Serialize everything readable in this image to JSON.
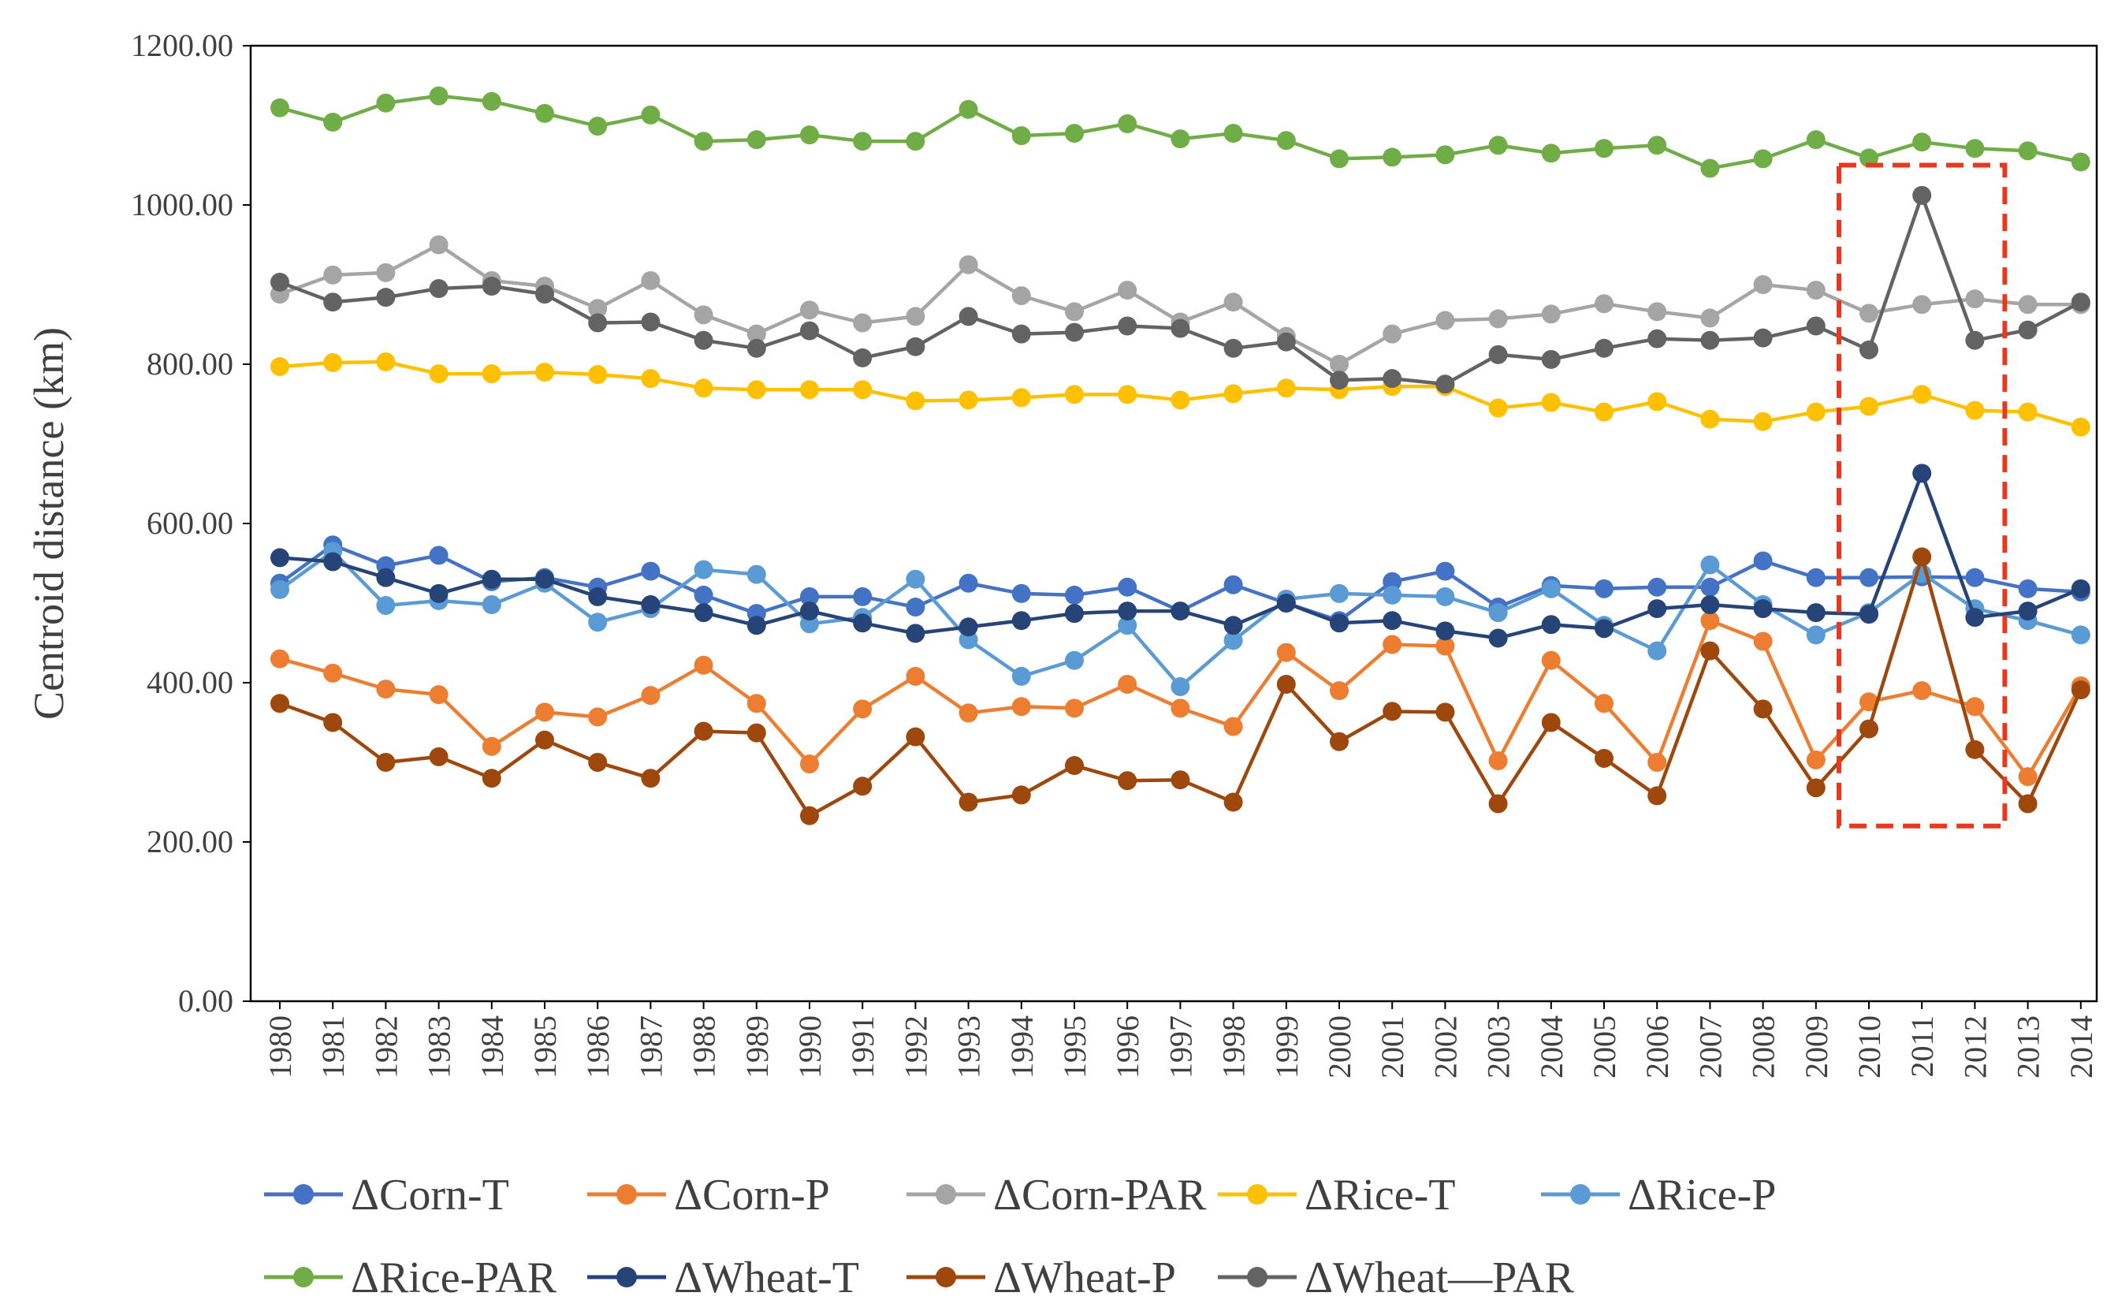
{
  "chart_data": {
    "type": "line",
    "title": "",
    "xlabel": "",
    "ylabel": "Centroid distance (km)",
    "ylim": [
      0,
      1200
    ],
    "y_ticks": [
      "0.00",
      "200.00",
      "400.00",
      "600.00",
      "800.00",
      "1000.00",
      "1200.00"
    ],
    "x": [
      "1980",
      "1981",
      "1982",
      "1983",
      "1984",
      "1985",
      "1986",
      "1987",
      "1988",
      "1989",
      "1990",
      "1991",
      "1992",
      "1993",
      "1994",
      "1995",
      "1996",
      "1997",
      "1998",
      "1999",
      "2000",
      "2001",
      "2002",
      "2003",
      "2004",
      "2005",
      "2006",
      "2007",
      "2008",
      "2009",
      "2010",
      "2011",
      "2012",
      "2013",
      "2014"
    ],
    "legend_position": "bottom",
    "highlight": {
      "x_from": "2010",
      "x_to": "2012",
      "y_from": 220,
      "y_to": 1050,
      "color": "#e8391e",
      "style": "dashed"
    },
    "series": [
      {
        "name": "ΔCorn-T",
        "color": "#4472c4",
        "values": [
          525,
          573,
          547,
          560,
          527,
          532,
          520,
          540,
          510,
          487,
          508,
          508,
          495,
          525,
          512,
          510,
          520,
          490,
          523,
          500,
          478,
          527,
          540,
          495,
          522,
          518,
          520,
          520,
          553,
          532,
          532,
          533,
          532,
          518,
          514
        ]
      },
      {
        "name": "ΔCorn-P",
        "color": "#ed7d31",
        "values": [
          430,
          412,
          392,
          385,
          320,
          363,
          357,
          384,
          422,
          374,
          298,
          367,
          408,
          362,
          370,
          368,
          398,
          368,
          345,
          438,
          390,
          448,
          446,
          302,
          428,
          374,
          300,
          478,
          452,
          303,
          376,
          390,
          370,
          282,
          396
        ]
      },
      {
        "name": "ΔCorn-PAR",
        "color": "#a5a5a5",
        "values": [
          888,
          912,
          915,
          950,
          905,
          898,
          870,
          905,
          862,
          838,
          868,
          852,
          860,
          925,
          886,
          866,
          893,
          853,
          878,
          835,
          800,
          838,
          855,
          857,
          863,
          876,
          866,
          858,
          900,
          893,
          864,
          875,
          882,
          875,
          875
        ]
      },
      {
        "name": "ΔRice-T",
        "color": "#ffc000",
        "values": [
          797,
          802,
          803,
          788,
          788,
          790,
          787,
          782,
          770,
          768,
          768,
          768,
          754,
          755,
          758,
          762,
          762,
          755,
          763,
          770,
          768,
          772,
          772,
          745,
          752,
          740,
          753,
          731,
          728,
          740,
          747,
          762,
          742,
          740,
          721
        ]
      },
      {
        "name": "ΔRice-P",
        "color": "#5b9bd5",
        "values": [
          517,
          565,
          497,
          503,
          498,
          525,
          476,
          493,
          542,
          536,
          474,
          482,
          530,
          454,
          408,
          428,
          472,
          395,
          453,
          505,
          512,
          510,
          508,
          488,
          518,
          472,
          440,
          548,
          498,
          460,
          488,
          537,
          493,
          478,
          460
        ]
      },
      {
        "name": "ΔRice-PAR",
        "color": "#70ad47",
        "values": [
          1122,
          1104,
          1128,
          1137,
          1130,
          1115,
          1099,
          1113,
          1080,
          1082,
          1088,
          1080,
          1080,
          1120,
          1087,
          1090,
          1102,
          1083,
          1090,
          1081,
          1058,
          1060,
          1063,
          1075,
          1065,
          1071,
          1075,
          1046,
          1058,
          1082,
          1059,
          1079,
          1071,
          1068,
          1054
        ]
      },
      {
        "name": "ΔWheat-T",
        "color": "#264478",
        "values": [
          557,
          552,
          532,
          512,
          530,
          530,
          508,
          498,
          488,
          472,
          490,
          475,
          462,
          470,
          478,
          487,
          490,
          490,
          472,
          500,
          475,
          478,
          465,
          456,
          473,
          468,
          493,
          498,
          493,
          488,
          486,
          663,
          482,
          490,
          518
        ]
      },
      {
        "name": "ΔWheat-P",
        "color": "#9e480e",
        "values": [
          374,
          350,
          300,
          307,
          280,
          328,
          300,
          280,
          339,
          337,
          233,
          270,
          332,
          250,
          259,
          296,
          277,
          278,
          250,
          398,
          326,
          364,
          363,
          248,
          350,
          305,
          258,
          440,
          367,
          268,
          342,
          558,
          316,
          248,
          391
        ]
      },
      {
        "name": "ΔWheat—PAR",
        "color": "#636363",
        "values": [
          903,
          878,
          884,
          895,
          898,
          888,
          852,
          853,
          830,
          820,
          842,
          808,
          822,
          860,
          838,
          840,
          848,
          845,
          820,
          828,
          780,
          782,
          775,
          812,
          806,
          820,
          832,
          830,
          833,
          848,
          818,
          1012,
          830,
          843,
          878
        ]
      }
    ]
  }
}
